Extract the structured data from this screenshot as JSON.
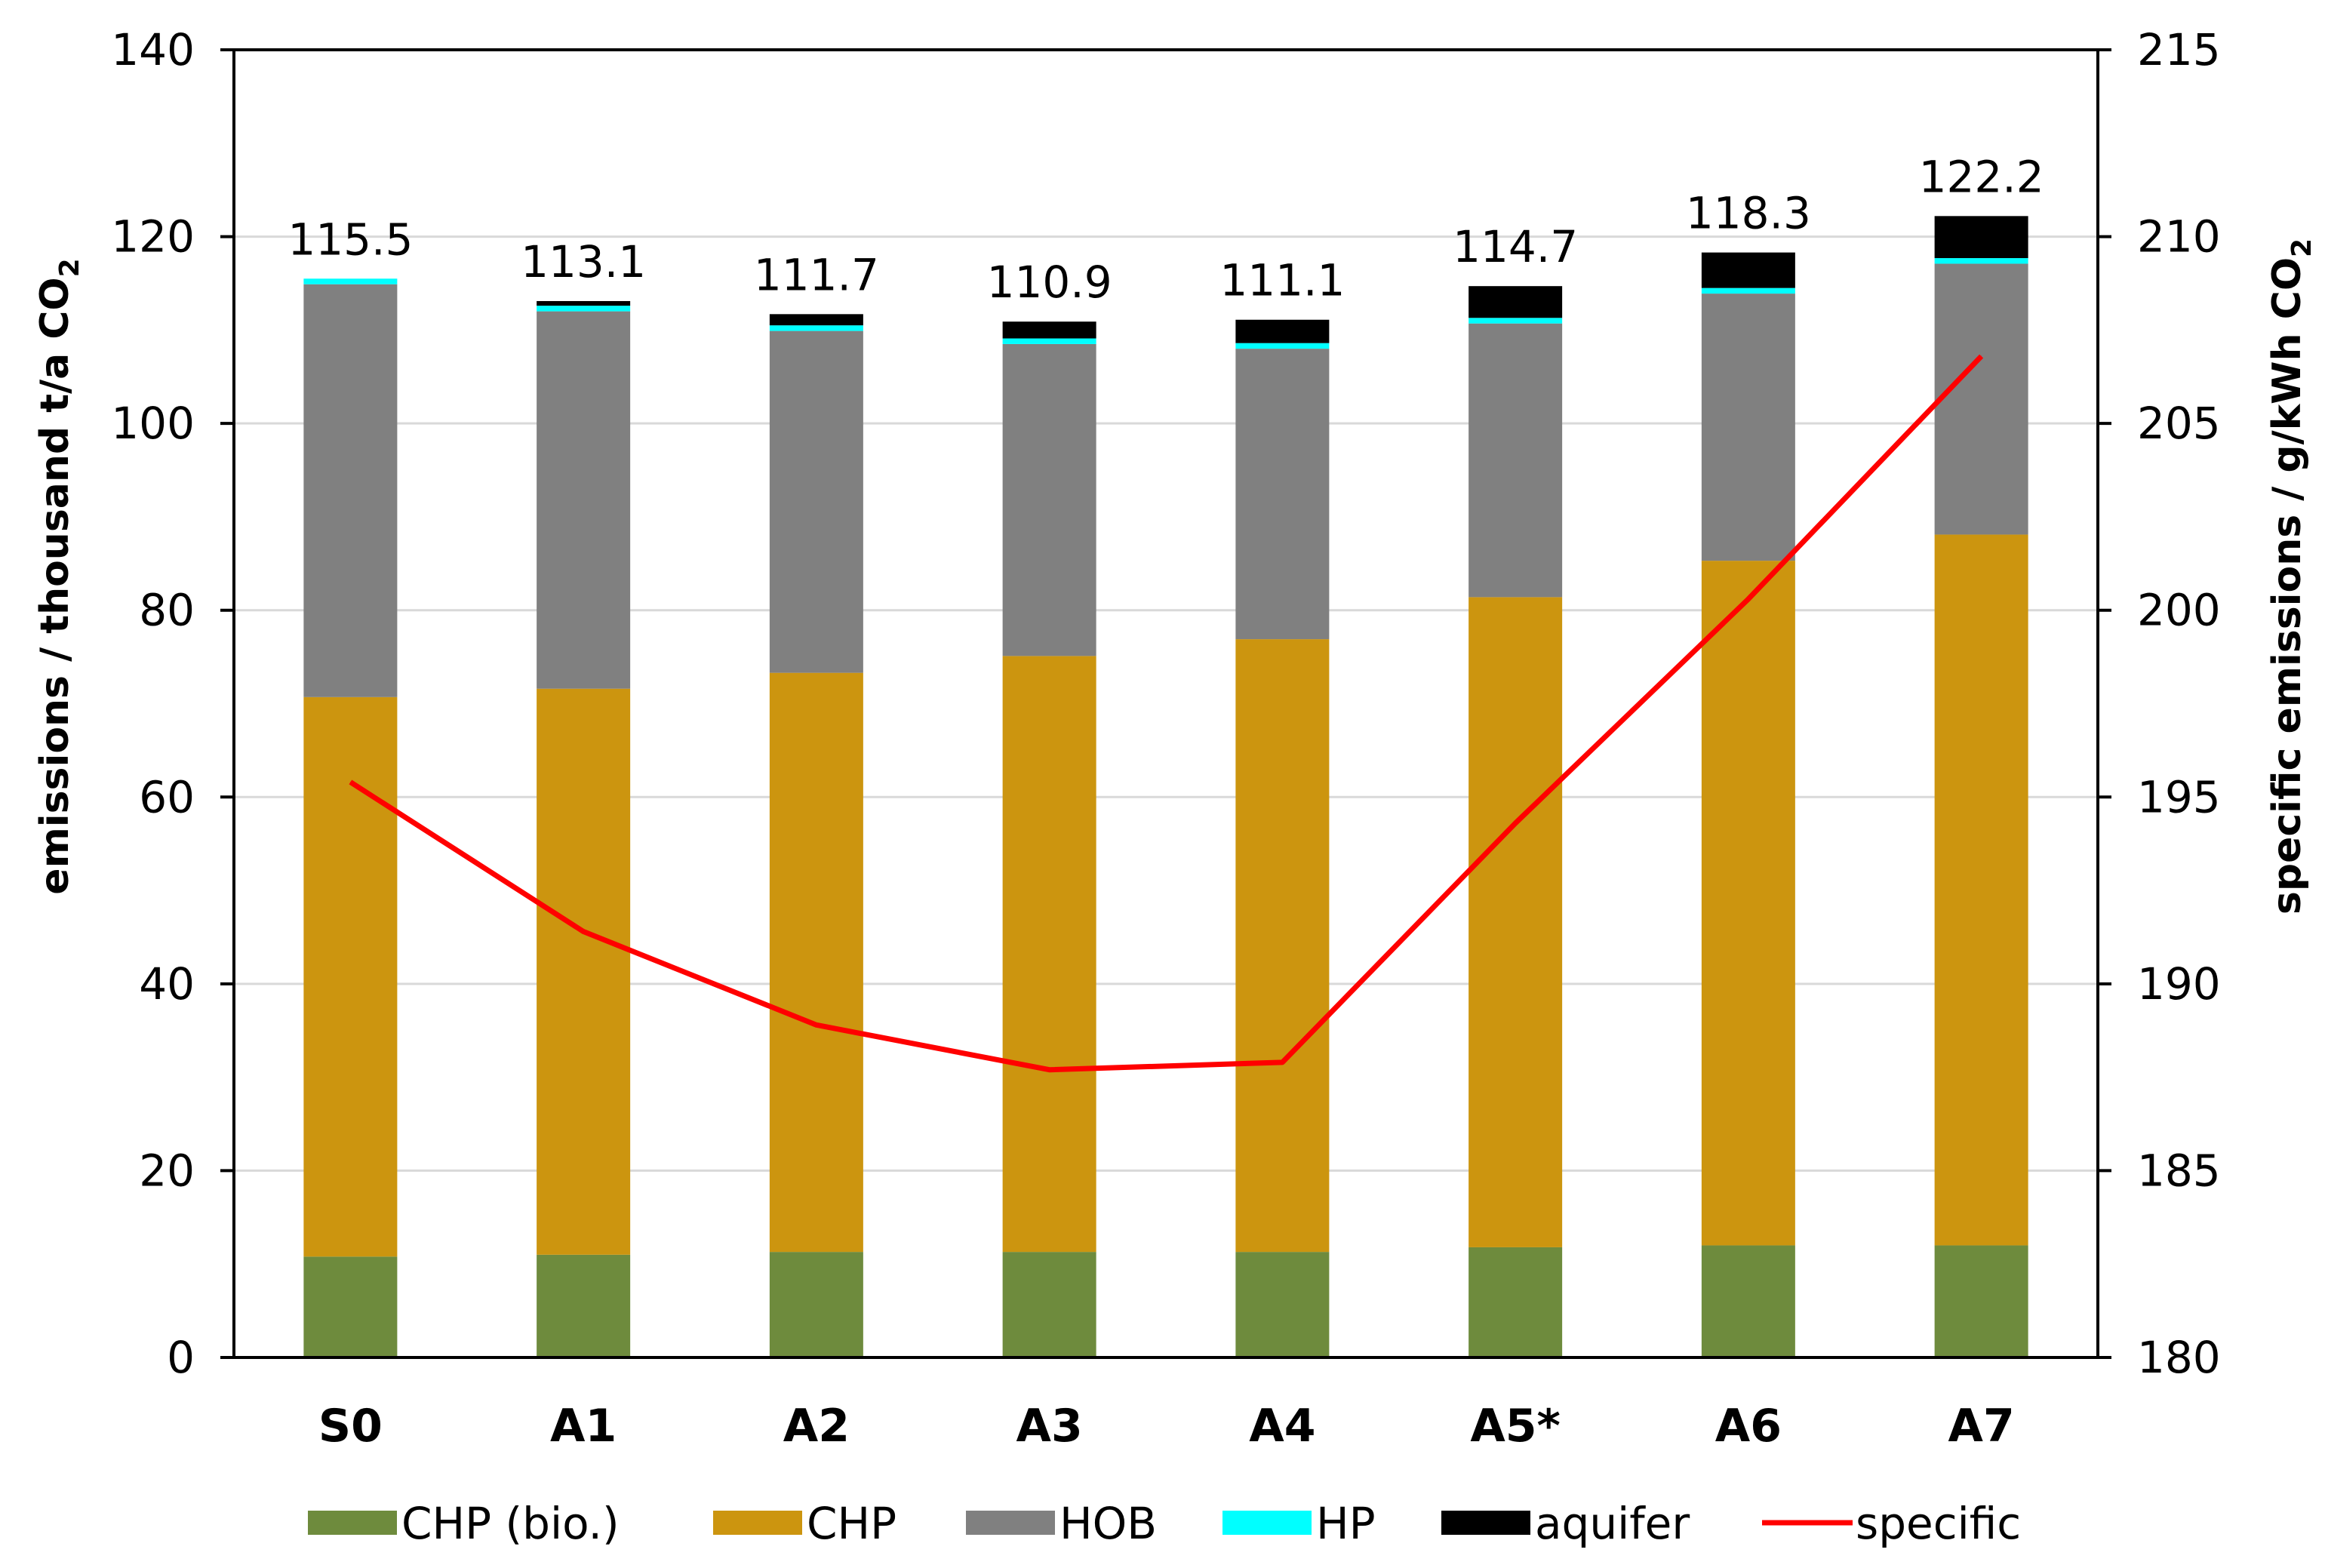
{
  "chart_data": {
    "type": "bar",
    "stacked": true,
    "categories": [
      "S0",
      "A1",
      "A2",
      "A3",
      "A4",
      "A5*",
      "A6",
      "A7"
    ],
    "series": [
      {
        "name": "CHP (bio.)",
        "color": "#6E8B3D",
        "values": [
          10.8,
          11.0,
          11.3,
          11.3,
          11.3,
          11.8,
          12.0,
          12.0
        ]
      },
      {
        "name": "CHP",
        "color": "#CC950F",
        "values": [
          59.9,
          60.6,
          62.0,
          63.8,
          65.6,
          69.6,
          73.3,
          76.1
        ]
      },
      {
        "name": "HOB",
        "color": "#808080",
        "values": [
          44.2,
          40.4,
          36.6,
          33.4,
          31.1,
          29.3,
          28.6,
          29.0
        ]
      },
      {
        "name": "HP",
        "color": "#00FFFF",
        "values": [
          0.6,
          0.6,
          0.6,
          0.6,
          0.6,
          0.6,
          0.6,
          0.6
        ]
      },
      {
        "name": "aquifer",
        "color": "#000000",
        "values": [
          0.0,
          0.5,
          1.2,
          1.8,
          2.5,
          3.4,
          3.8,
          4.5
        ]
      }
    ],
    "line_series": {
      "name": "specific",
      "color": "#FF0000",
      "axis": "y2",
      "values": [
        195.4,
        191.4,
        188.9,
        187.7,
        187.9,
        194.3,
        200.3,
        206.8
      ]
    },
    "totals": [
      115.5,
      113.1,
      111.7,
      110.9,
      111.1,
      114.7,
      118.3,
      122.2
    ],
    "total_labels": [
      "115.5",
      "113.1",
      "111.7",
      "110.9",
      "111.1",
      "114.7",
      "118.3",
      "122.2"
    ],
    "ylim": [
      0,
      140
    ],
    "yticks": [
      "0",
      "20",
      "40",
      "60",
      "80",
      "100",
      "120",
      "140"
    ],
    "y2lim": [
      180,
      215
    ],
    "y2ticks": [
      "180",
      "185",
      "190",
      "195",
      "200",
      "205",
      "210",
      "215"
    ],
    "ylabel": {
      "text": "emissions / thousand t/a CO",
      "sub": "2"
    },
    "y2label": {
      "text": "specific emissions / g/kWh CO",
      "sub": "2"
    },
    "legend_position": "bottom",
    "grid": true
  }
}
